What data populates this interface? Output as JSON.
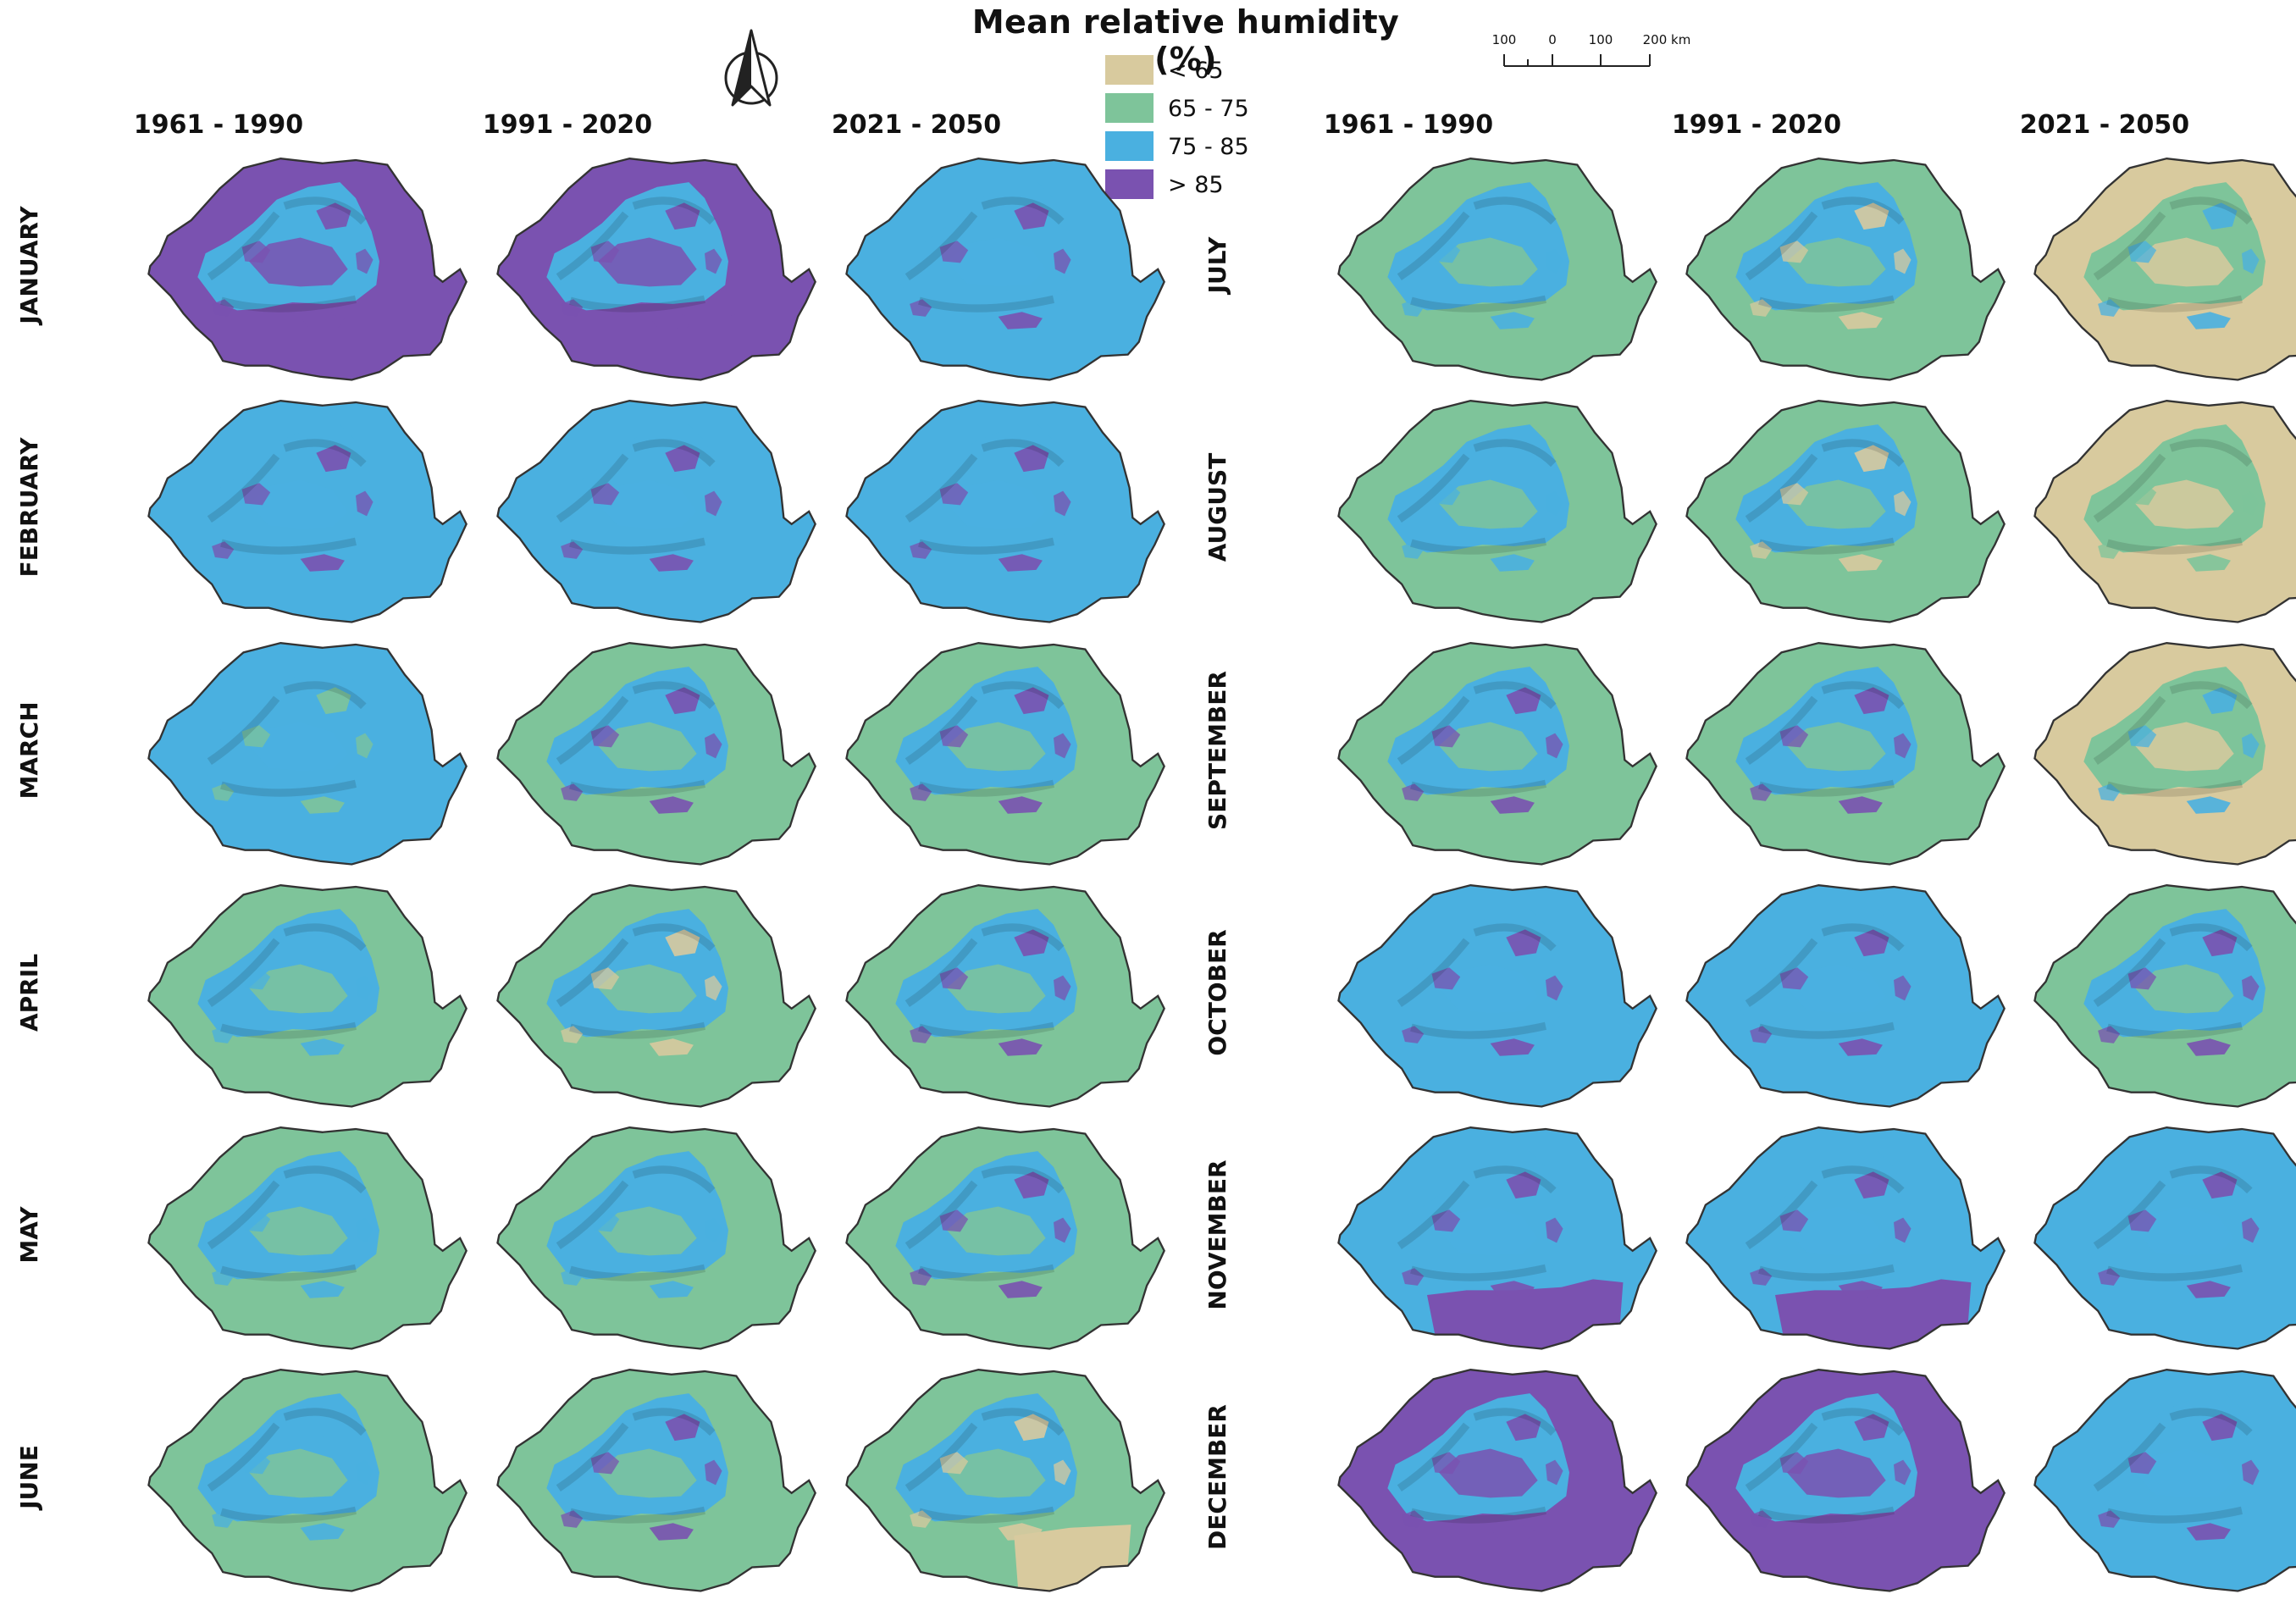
{
  "title": "Mean relative humidity (%)",
  "colors": {
    "lt65": "#d8ca9e",
    "r65_75": "#7ec49a",
    "r75_85": "#4ab0e0",
    "gt85": "#7a52b0",
    "border": "#333333"
  },
  "legend": [
    {
      "label": "< 65",
      "color": "#d8ca9e"
    },
    {
      "label": "65 - 75",
      "color": "#7ec49a"
    },
    {
      "label": "75 - 85",
      "color": "#4ab0e0"
    },
    {
      "label": "> 85",
      "color": "#7a52b0"
    }
  ],
  "north_arrow_icon": "north-arrow-icon",
  "scale": {
    "labels": [
      "100",
      "0",
      "100",
      "200 km"
    ]
  },
  "column_headers": [
    "1961 - 1990",
    "1991 - 2020",
    "2021 - 2050",
    "1961 - 1990",
    "1991 - 2020",
    "2021 - 2050"
  ],
  "row_labels": [
    "JANUARY",
    "FEBRUARY",
    "MARCH",
    "APRIL",
    "MAY",
    "JUNE",
    "JULY",
    "AUGUST",
    "SEPTEMBER",
    "OCTOBER",
    "NOVEMBER",
    "DECEMBER"
  ],
  "maps": [
    {
      "month": "JANUARY",
      "period": "1961 - 1990",
      "dominant": "> 85",
      "mountain": "75 - 85",
      "patch": "> 85"
    },
    {
      "month": "JANUARY",
      "period": "1991 - 2020",
      "dominant": "> 85",
      "mountain": "75 - 85",
      "patch": "> 85"
    },
    {
      "month": "JANUARY",
      "period": "2021 - 2050",
      "dominant": "75 - 85",
      "mountain": "75 - 85",
      "patch": "> 85"
    },
    {
      "month": "FEBRUARY",
      "period": "1961 - 1990",
      "dominant": "75 - 85",
      "mountain": "75 - 85",
      "patch": "> 85"
    },
    {
      "month": "FEBRUARY",
      "period": "1991 - 2020",
      "dominant": "75 - 85",
      "mountain": "75 - 85",
      "patch": "> 85"
    },
    {
      "month": "FEBRUARY",
      "period": "2021 - 2050",
      "dominant": "75 - 85",
      "mountain": "75 - 85",
      "patch": "> 85"
    },
    {
      "month": "MARCH",
      "period": "1961 - 1990",
      "dominant": "75 - 85",
      "mountain": "75 - 85",
      "patch": "65 - 75"
    },
    {
      "month": "MARCH",
      "period": "1991 - 2020",
      "dominant": "65 - 75",
      "mountain": "75 - 85",
      "patch": "> 85"
    },
    {
      "month": "MARCH",
      "period": "2021 - 2050",
      "dominant": "65 - 75",
      "mountain": "75 - 85",
      "patch": "> 85"
    },
    {
      "month": "APRIL",
      "period": "1961 - 1990",
      "dominant": "65 - 75",
      "mountain": "75 - 85",
      "patch": "75 - 85"
    },
    {
      "month": "APRIL",
      "period": "1991 - 2020",
      "dominant": "65 - 75",
      "mountain": "75 - 85",
      "patch": "< 65"
    },
    {
      "month": "APRIL",
      "period": "2021 - 2050",
      "dominant": "65 - 75",
      "mountain": "75 - 85",
      "patch": "> 85"
    },
    {
      "month": "MAY",
      "period": "1961 - 1990",
      "dominant": "65 - 75",
      "mountain": "75 - 85",
      "patch": "75 - 85"
    },
    {
      "month": "MAY",
      "period": "1991 - 2020",
      "dominant": "65 - 75",
      "mountain": "75 - 85",
      "patch": "75 - 85"
    },
    {
      "month": "MAY",
      "period": "2021 - 2050",
      "dominant": "65 - 75",
      "mountain": "75 - 85",
      "patch": "> 85"
    },
    {
      "month": "JUNE",
      "period": "1961 - 1990",
      "dominant": "65 - 75",
      "mountain": "75 - 85",
      "patch": "75 - 85"
    },
    {
      "month": "JUNE",
      "period": "1991 - 2020",
      "dominant": "65 - 75",
      "mountain": "75 - 85",
      "patch": "> 85"
    },
    {
      "month": "JUNE",
      "period": "2021 - 2050",
      "dominant": "65 - 75",
      "mountain": "75 - 85",
      "patch": "< 65"
    },
    {
      "month": "JULY",
      "period": "1961 - 1990",
      "dominant": "65 - 75",
      "mountain": "75 - 85",
      "patch": "75 - 85"
    },
    {
      "month": "JULY",
      "period": "1991 - 2020",
      "dominant": "65 - 75",
      "mountain": "75 - 85",
      "patch": "< 65"
    },
    {
      "month": "JULY",
      "period": "2021 - 2050",
      "dominant": "< 65",
      "mountain": "65 - 75",
      "patch": "75 - 85"
    },
    {
      "month": "AUGUST",
      "period": "1961 - 1990",
      "dominant": "65 - 75",
      "mountain": "75 - 85",
      "patch": "75 - 85"
    },
    {
      "month": "AUGUST",
      "period": "1991 - 2020",
      "dominant": "65 - 75",
      "mountain": "75 - 85",
      "patch": "< 65"
    },
    {
      "month": "AUGUST",
      "period": "2021 - 2050",
      "dominant": "< 65",
      "mountain": "65 - 75",
      "patch": "65 - 75"
    },
    {
      "month": "SEPTEMBER",
      "period": "1961 - 1990",
      "dominant": "65 - 75",
      "mountain": "75 - 85",
      "patch": "> 85"
    },
    {
      "month": "SEPTEMBER",
      "period": "1991 - 2020",
      "dominant": "65 - 75",
      "mountain": "75 - 85",
      "patch": "> 85"
    },
    {
      "month": "SEPTEMBER",
      "period": "2021 - 2050",
      "dominant": "< 65",
      "mountain": "65 - 75",
      "patch": "75 - 85"
    },
    {
      "month": "OCTOBER",
      "period": "1961 - 1990",
      "dominant": "75 - 85",
      "mountain": "75 - 85",
      "patch": "> 85"
    },
    {
      "month": "OCTOBER",
      "period": "1991 - 2020",
      "dominant": "75 - 85",
      "mountain": "75 - 85",
      "patch": "> 85"
    },
    {
      "month": "OCTOBER",
      "period": "2021 - 2050",
      "dominant": "65 - 75",
      "mountain": "75 - 85",
      "patch": "> 85"
    },
    {
      "month": "NOVEMBER",
      "period": "1961 - 1990",
      "dominant": "75 - 85",
      "mountain": "75 - 85",
      "patch": "> 85"
    },
    {
      "month": "NOVEMBER",
      "period": "1991 - 2020",
      "dominant": "75 - 85",
      "mountain": "75 - 85",
      "patch": "> 85"
    },
    {
      "month": "NOVEMBER",
      "period": "2021 - 2050",
      "dominant": "75 - 85",
      "mountain": "75 - 85",
      "patch": "> 85"
    },
    {
      "month": "DECEMBER",
      "period": "1961 - 1990",
      "dominant": "> 85",
      "mountain": "75 - 85",
      "patch": "> 85"
    },
    {
      "month": "DECEMBER",
      "period": "1991 - 2020",
      "dominant": "> 85",
      "mountain": "75 - 85",
      "patch": "> 85"
    },
    {
      "month": "DECEMBER",
      "period": "2021 - 2050",
      "dominant": "75 - 85",
      "mountain": "75 - 85",
      "patch": "> 85"
    }
  ]
}
